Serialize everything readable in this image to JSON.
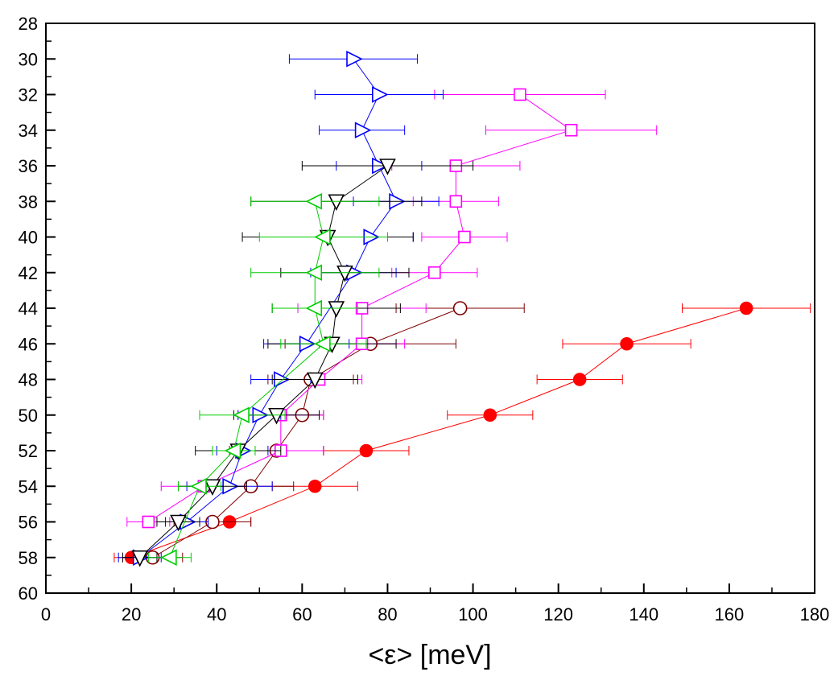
{
  "chart_data": {
    "type": "scatter",
    "xlabel": "<ε> [meV]",
    "ylabel": "",
    "xlim": [
      0,
      180
    ],
    "ylim": [
      60,
      28
    ],
    "y_inverted": true,
    "x_ticks": [
      0,
      20,
      40,
      60,
      80,
      100,
      120,
      140,
      160,
      180
    ],
    "y_ticks": [
      28,
      30,
      32,
      34,
      36,
      38,
      40,
      42,
      44,
      46,
      48,
      50,
      52,
      54,
      56,
      58,
      60
    ],
    "grid": false,
    "legend": "none",
    "series": [
      {
        "marker": "circle-filled",
        "color": "#ff0000",
        "points": [
          {
            "x": 20,
            "y": 58,
            "err": 4
          },
          {
            "x": 43,
            "y": 56,
            "err": 5
          },
          {
            "x": 63,
            "y": 54,
            "err": 10
          },
          {
            "x": 75,
            "y": 52,
            "err": 10
          },
          {
            "x": 104,
            "y": 50,
            "err": 10
          },
          {
            "x": 125,
            "y": 48,
            "err": 10
          },
          {
            "x": 136,
            "y": 46,
            "err": 15
          },
          {
            "x": 164,
            "y": 44,
            "err": 15
          }
        ]
      },
      {
        "marker": "circle-open",
        "color": "#7f0000",
        "points": [
          {
            "x": 25,
            "y": 58,
            "err": 7
          },
          {
            "x": 39,
            "y": 56,
            "err": 9
          },
          {
            "x": 48,
            "y": 54,
            "err": 10
          },
          {
            "x": 54,
            "y": 52,
            "err": 11
          },
          {
            "x": 60,
            "y": 50,
            "err": 5
          },
          {
            "x": 62,
            "y": 48,
            "err": 10
          },
          {
            "x": 76,
            "y": 46,
            "err": 20
          },
          {
            "x": 97,
            "y": 44,
            "err": 15
          }
        ]
      },
      {
        "marker": "square-open",
        "color": "#ff00ff",
        "points": [
          {
            "x": 24,
            "y": 56,
            "err": 5
          },
          {
            "x": 37,
            "y": 54,
            "err": 10
          },
          {
            "x": 55,
            "y": 52,
            "err": 10
          },
          {
            "x": 55,
            "y": 50,
            "err": 10
          },
          {
            "x": 64,
            "y": 48,
            "err": 10
          },
          {
            "x": 74,
            "y": 46,
            "err": 10
          },
          {
            "x": 74,
            "y": 44,
            "err": 15
          },
          {
            "x": 91,
            "y": 42,
            "err": 10
          },
          {
            "x": 98,
            "y": 40,
            "err": 10
          },
          {
            "x": 96,
            "y": 38,
            "err": 10
          },
          {
            "x": 96,
            "y": 36,
            "err": 15
          },
          {
            "x": 123,
            "y": 34,
            "err": 20
          },
          {
            "x": 111,
            "y": 32,
            "err": 20
          }
        ]
      },
      {
        "marker": "triangle-right-open",
        "color": "#0000ff",
        "points": [
          {
            "x": 22,
            "y": 58,
            "err": 5
          },
          {
            "x": 33,
            "y": 56,
            "err": 5
          },
          {
            "x": 43,
            "y": 54,
            "err": 10
          },
          {
            "x": 46,
            "y": 52,
            "err": 6
          },
          {
            "x": 50,
            "y": 50,
            "err": 5
          },
          {
            "x": 55,
            "y": 48,
            "err": 7
          },
          {
            "x": 61,
            "y": 46,
            "err": 10
          },
          {
            "x": 72,
            "y": 42,
            "err": 10
          },
          {
            "x": 76,
            "y": 40,
            "err": 10
          },
          {
            "x": 82,
            "y": 38,
            "err": 10
          },
          {
            "x": 78,
            "y": 36,
            "err": 10
          },
          {
            "x": 74,
            "y": 34,
            "err": 10
          },
          {
            "x": 78,
            "y": 32,
            "err": 15
          },
          {
            "x": 72,
            "y": 30,
            "err": 15
          }
        ]
      },
      {
        "marker": "triangle-down-open",
        "color": "#000000",
        "points": [
          {
            "x": 22,
            "y": 58,
            "err": 4
          },
          {
            "x": 31,
            "y": 56,
            "err": 5
          },
          {
            "x": 39,
            "y": 54,
            "err": 8
          },
          {
            "x": 45,
            "y": 52,
            "err": 10
          },
          {
            "x": 54,
            "y": 50,
            "err": 10
          },
          {
            "x": 63,
            "y": 48,
            "err": 10
          },
          {
            "x": 67,
            "y": 46,
            "err": 15
          },
          {
            "x": 68,
            "y": 44,
            "err": 15
          },
          {
            "x": 70,
            "y": 42,
            "err": 15
          },
          {
            "x": 66,
            "y": 40,
            "err": 20
          },
          {
            "x": 68,
            "y": 38,
            "err": 20
          },
          {
            "x": 80,
            "y": 36,
            "err": 20
          }
        ]
      },
      {
        "marker": "triangle-left-open",
        "color": "#00cc00",
        "points": [
          {
            "x": 29,
            "y": 58,
            "err": 5
          },
          {
            "x": 36,
            "y": 54,
            "err": 5
          },
          {
            "x": 44,
            "y": 52,
            "err": 5
          },
          {
            "x": 46,
            "y": 50,
            "err": 10
          },
          {
            "x": 65,
            "y": 46,
            "err": 10
          },
          {
            "x": 63,
            "y": 44,
            "err": 10
          },
          {
            "x": 63,
            "y": 42,
            "err": 15
          },
          {
            "x": 65,
            "y": 40,
            "err": 15
          },
          {
            "x": 63,
            "y": 38,
            "err": 15
          }
        ]
      }
    ]
  }
}
